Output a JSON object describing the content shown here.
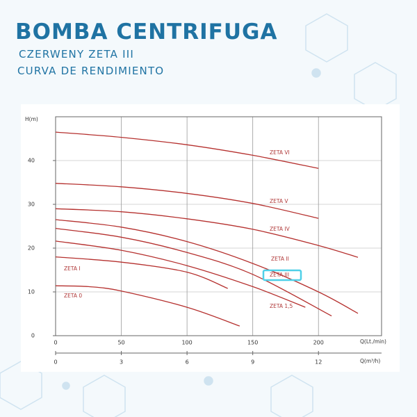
{
  "chart_data": {
    "type": "line",
    "title": "BOMBA CENTRIFUGA",
    "subtitles": [
      "CZERWENY ZETA III",
      "CURVA DE RENDIMIENTO"
    ],
    "ylabel": "H(m)",
    "xlabel": "Q(Lt./min)",
    "x2label": "Q(m³/h)",
    "xlim": [
      0,
      248
    ],
    "xticks": [
      0,
      50,
      100,
      150,
      200
    ],
    "x2lim": [
      0,
      14.88
    ],
    "x2ticks": [
      0,
      3,
      6,
      9,
      12
    ],
    "ylim": [
      0,
      50
    ],
    "yticks": [
      0,
      10,
      20,
      30,
      40
    ],
    "grid": true,
    "series": [
      {
        "name": "ZETA VI",
        "color": "#b5302e",
        "x": [
          0,
          50,
          100,
          150,
          200
        ],
        "values": [
          46.5,
          45.3,
          43.6,
          41.2,
          38.2
        ]
      },
      {
        "name": "ZETA V",
        "color": "#b5302e",
        "x": [
          0,
          50,
          100,
          150,
          200
        ],
        "values": [
          34.8,
          34.0,
          32.5,
          30.2,
          26.8
        ]
      },
      {
        "name": "ZETA IV",
        "color": "#b5302e",
        "x": [
          0,
          50,
          100,
          150,
          200,
          230
        ],
        "values": [
          29.0,
          28.3,
          26.7,
          24.3,
          20.6,
          17.9
        ]
      },
      {
        "name": "ZETA II",
        "color": "#b5302e",
        "x": [
          0,
          50,
          100,
          150,
          200,
          230
        ],
        "values": [
          26.5,
          24.8,
          21.5,
          16.5,
          10.0,
          5.1
        ]
      },
      {
        "name": "ZETA III",
        "color": "#b5302e",
        "x": [
          0,
          50,
          100,
          150,
          210
        ],
        "values": [
          24.5,
          22.5,
          19.0,
          14.0,
          4.5
        ]
      },
      {
        "name": "ZETA 1,5",
        "color": "#b5302e",
        "x": [
          0,
          50,
          100,
          150,
          190
        ],
        "values": [
          21.6,
          19.5,
          16.0,
          11.2,
          6.5
        ]
      },
      {
        "name": "ZETA I",
        "color": "#b5302e",
        "x": [
          0,
          50,
          100,
          131
        ],
        "values": [
          18.0,
          16.8,
          14.5,
          10.8
        ]
      },
      {
        "name": "ZETA 0",
        "color": "#b5302e",
        "x": [
          0,
          25,
          50,
          100,
          140
        ],
        "values": [
          11.4,
          11.2,
          10.2,
          6.5,
          2.2
        ]
      }
    ]
  }
}
